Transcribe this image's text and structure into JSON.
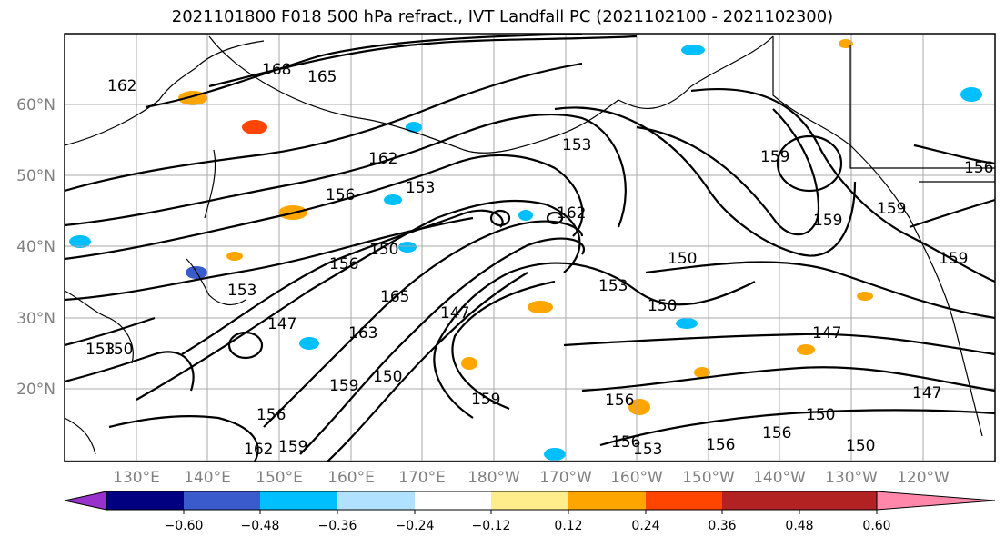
{
  "title": "2021101800 F018 500 hPa refract., IVT Landfall PC (2021102100 - 2021102300)",
  "lat_labels": [
    "60°N",
    "50°N",
    "40°N",
    "30°N",
    "20°N"
  ],
  "lon_labels": [
    "130°E",
    "140°E",
    "150°E",
    "160°E",
    "170°E",
    "180°W",
    "170°W",
    "160°W",
    "150°W",
    "140°W",
    "130°W",
    "120°W"
  ],
  "colorbar": {
    "colors": [
      "#9932cc",
      "#000080",
      "#3a5bcc",
      "#00bfff",
      "#b0e2ff",
      "#ffffff",
      "#ffec8b",
      "#ffa500",
      "#ff4500",
      "#b22222",
      "#ff88aa"
    ],
    "ticks": [
      "−0.60",
      "−0.48",
      "−0.36",
      "−0.24",
      "−0.12",
      "0.12",
      "0.24",
      "0.36",
      "0.48",
      "0.60"
    ]
  },
  "contour_labels": [
    "168",
    "165",
    "162",
    "162",
    "162",
    "159",
    "159",
    "159",
    "159",
    "159",
    "159",
    "159",
    "156",
    "156",
    "156",
    "156",
    "156",
    "156",
    "156",
    "156",
    "153",
    "153",
    "153",
    "153",
    "153",
    "153",
    "150",
    "150",
    "150",
    "150",
    "150",
    "150",
    "150",
    "147",
    "147",
    "147",
    "147",
    "165",
    "163",
    "162"
  ]
}
